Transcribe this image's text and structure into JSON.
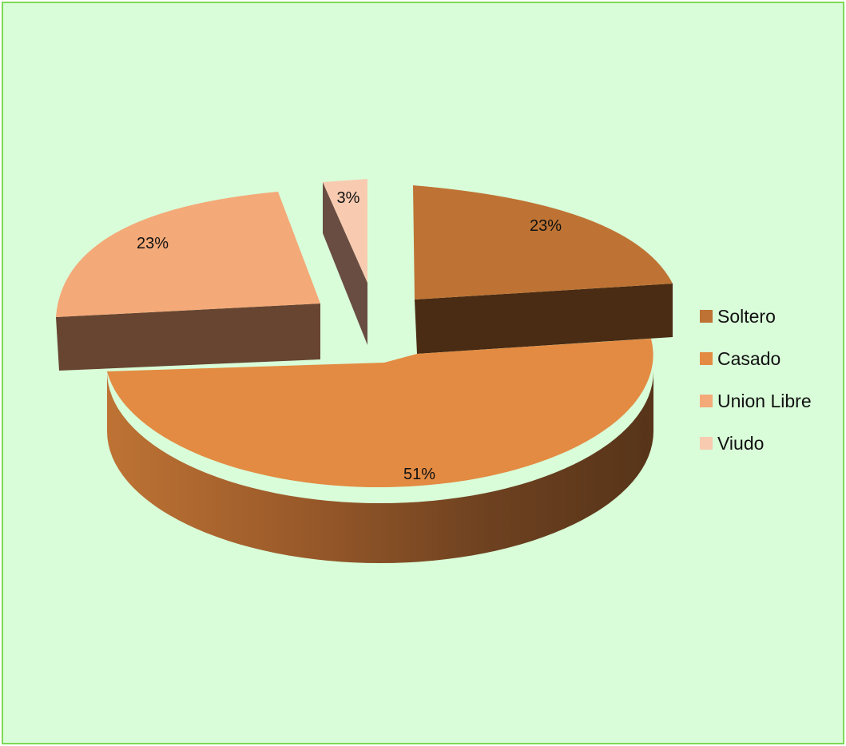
{
  "chart_data": {
    "type": "pie",
    "style": "3d-exploded",
    "categories": [
      "Soltero",
      "Casado",
      "Union Libre",
      "Viudo"
    ],
    "values": [
      23,
      51,
      23,
      3
    ],
    "labels": [
      "23%",
      "51%",
      "23%",
      "3%"
    ],
    "colors": [
      "#be7334",
      "#e38b42",
      "#f4a978",
      "#f8cbb0"
    ],
    "legend_position": "right"
  }
}
